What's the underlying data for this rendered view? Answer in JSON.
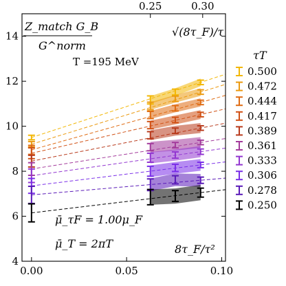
{
  "chart_data": {
    "type": "scatter",
    "title_box": {
      "numerator": "Z_match G_B",
      "denominator": "G^norm",
      "temperature": "T =195 MeV"
    },
    "x_axis": {
      "ticks": [
        "0.00",
        "0.05",
        "0.10"
      ],
      "tick_values": [
        0,
        0.05,
        0.1
      ],
      "label": "8τ_F/τ²",
      "xlim": [
        -0.005,
        0.102
      ]
    },
    "x2_axis": {
      "ticks": [
        "0.25",
        "0.30"
      ],
      "tick_values": [
        0.25,
        0.3
      ],
      "label": "√(8τ_F)/τ"
    },
    "y_axis": {
      "ticks": [
        "4",
        "6",
        "8",
        "10",
        "12",
        "14"
      ],
      "tick_values": [
        4,
        6,
        8,
        10,
        12,
        14
      ],
      "ylim": [
        4,
        15
      ]
    },
    "scheme": {
      "mu_tauF": "μ̄_τF = 1.00μ_F",
      "mu_T": "μ̄_T = 2πT"
    },
    "legend": {
      "title": "τT",
      "position": "right"
    },
    "x_points": [
      0.0625,
      0.0756,
      0.0889
    ],
    "series": [
      {
        "name": "0.500",
        "color": "#f2b705",
        "intercept": 9.5,
        "values": [
          11.17,
          11.52,
          11.95
        ],
        "err": [
          0.18,
          0.13,
          0.1
        ],
        "y0_err": 0.1,
        "band_half_width": 0.17
      },
      {
        "name": "0.472",
        "color": "#eb9a10",
        "intercept": 9.2,
        "values": [
          10.9,
          11.22,
          11.52
        ],
        "err": [
          0.17,
          0.12,
          0.1
        ],
        "y0_err": 0.12,
        "band_half_width": 0.17
      },
      {
        "name": "0.444",
        "color": "#df6b12",
        "intercept": 8.95,
        "values": [
          10.5,
          10.8,
          11.06
        ],
        "err": [
          0.16,
          0.12,
          0.1
        ],
        "y0_err": 0.2,
        "band_half_width": 0.18
      },
      {
        "name": "0.417",
        "color": "#d05014",
        "intercept": 8.8,
        "values": [
          10.05,
          10.28,
          10.52
        ],
        "err": [
          0.16,
          0.12,
          0.1
        ],
        "y0_err": 0.24,
        "band_half_width": 0.2
      },
      {
        "name": "0.389",
        "color": "#b83a1c",
        "intercept": 8.45,
        "values": [
          9.6,
          9.8,
          9.92
        ],
        "err": [
          0.16,
          0.12,
          0.1
        ],
        "y0_err": 0.26,
        "band_half_width": 0.22
      },
      {
        "name": "0.361",
        "color": "#a33b9c",
        "intercept": 8.1,
        "values": [
          9.07,
          9.16,
          9.28
        ],
        "err": [
          0.16,
          0.12,
          0.1
        ],
        "y0_err": 0.28,
        "band_half_width": 0.24
      },
      {
        "name": "0.333",
        "color": "#9236d0",
        "intercept": 7.8,
        "values": [
          8.6,
          8.72,
          8.87
        ],
        "err": [
          0.2,
          0.14,
          0.12
        ],
        "y0_err": 0.3,
        "band_half_width": 0.25
      },
      {
        "name": "0.306",
        "color": "#7a2ee8",
        "intercept": 7.35,
        "values": [
          8.0,
          8.15,
          8.28
        ],
        "err": [
          0.22,
          0.16,
          0.12
        ],
        "y0_err": 0.33,
        "band_half_width": 0.26
      },
      {
        "name": "0.278",
        "color": "#5a1ab8",
        "intercept": 6.95,
        "values": [
          7.4,
          7.62,
          7.6
        ],
        "err": [
          0.26,
          0.18,
          0.14
        ],
        "y0_err": 0.38,
        "band_half_width": 0.28
      },
      {
        "name": "0.250",
        "color": "#000000",
        "intercept": 6.15,
        "values": [
          6.85,
          6.9,
          7.05
        ],
        "err": [
          0.34,
          0.24,
          0.2
        ],
        "y0_err": 0.4,
        "band_half_width": 0.34
      }
    ]
  }
}
